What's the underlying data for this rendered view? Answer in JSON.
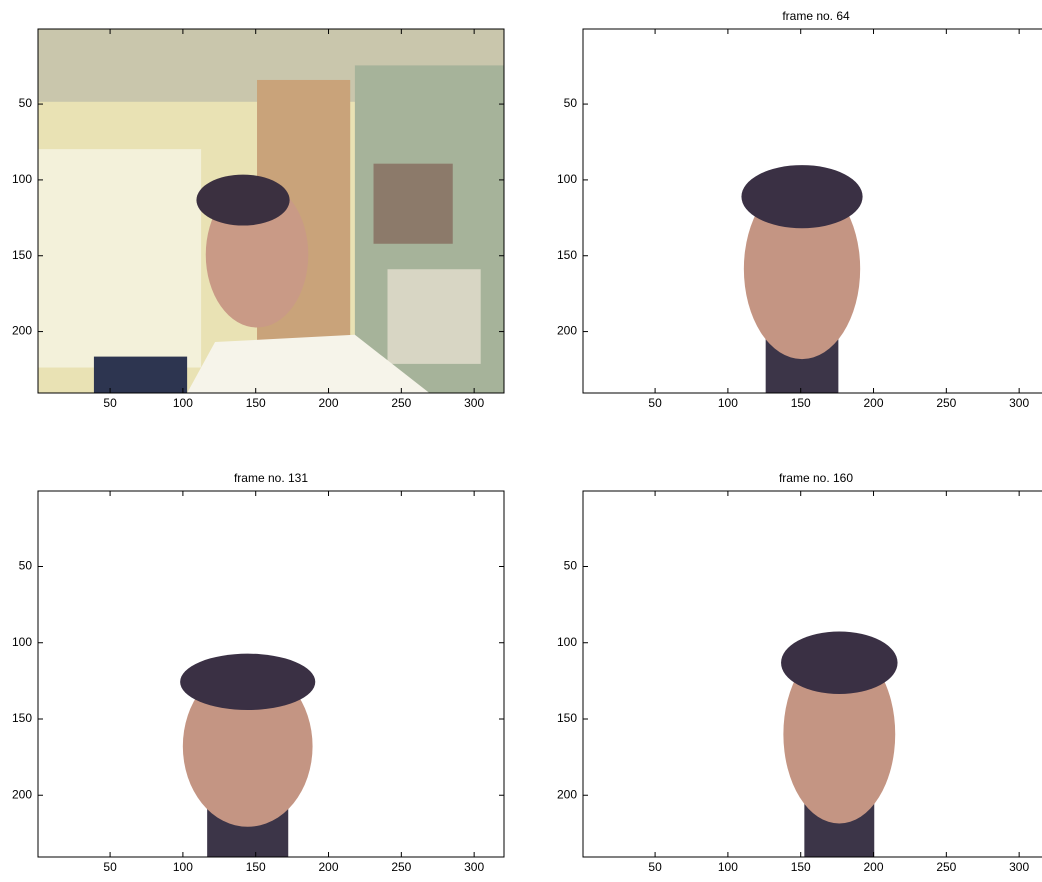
{
  "chart_data": [
    {
      "type": "image",
      "xlim": [
        0.5,
        320.5
      ],
      "ylim": [
        0.5,
        240.5
      ],
      "y_reversed": true,
      "xticks": [
        50,
        100,
        150,
        200,
        250,
        300
      ],
      "yticks": [
        50,
        100,
        150,
        200
      ]
    },
    {
      "type": "image",
      "title": "frame no. 64",
      "xlim": [
        0.5,
        320.5
      ],
      "ylim": [
        0.5,
        240.5
      ],
      "y_reversed": true,
      "xticks": [
        50,
        100,
        150,
        200,
        250,
        300
      ],
      "yticks": [
        50,
        100,
        150,
        200
      ]
    },
    {
      "type": "image",
      "title": "frame no. 131",
      "xlim": [
        0.5,
        320.5
      ],
      "ylim": [
        0.5,
        240.5
      ],
      "y_reversed": true,
      "xticks": [
        50,
        100,
        150,
        200,
        250,
        300
      ],
      "yticks": [
        50,
        100,
        150,
        200
      ]
    },
    {
      "type": "image",
      "title": "frame no. 160",
      "xlim": [
        0.5,
        320.5
      ],
      "ylim": [
        0.5,
        240.5
      ],
      "y_reversed": true,
      "xticks": [
        50,
        100,
        150,
        200,
        250,
        300
      ],
      "yticks": [
        50,
        100,
        150,
        200
      ]
    }
  ]
}
